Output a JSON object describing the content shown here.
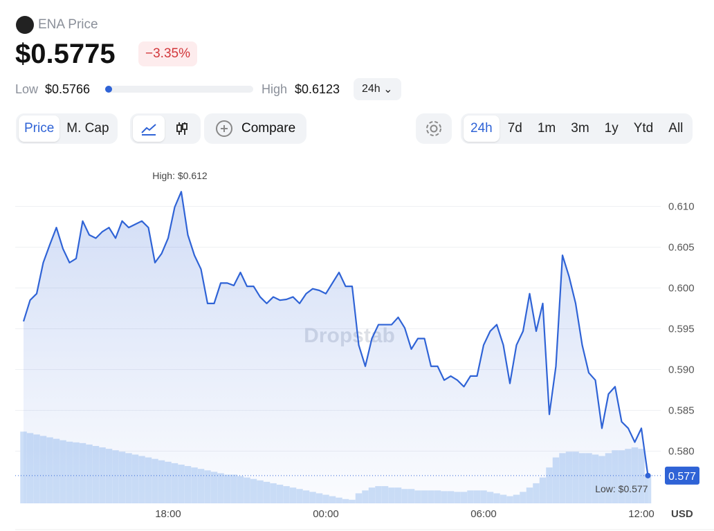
{
  "header": {
    "coin_name": "ENA Price",
    "price": "$0.5775",
    "change": "−3.35%",
    "low_label": "Low",
    "low_value": "$0.5766",
    "high_label": "High",
    "high_value": "$0.6123",
    "range_select": "24h"
  },
  "toolbar": {
    "metric_tabs": [
      "Price",
      "M. Cap"
    ],
    "compare": "Compare",
    "timeframes": [
      "24h",
      "7d",
      "1m",
      "3m",
      "1y",
      "Ytd",
      "All"
    ]
  },
  "chart_data": {
    "type": "line",
    "watermark": "Dropstab",
    "currency": "USD",
    "color": "#2f63d6",
    "volume_color": "#cddff7",
    "high_label": "High: $0.612",
    "low_label": "Low: $0.577",
    "last_price": 0.577,
    "x": [
      "12:30",
      "12:45",
      "13:00",
      "13:15",
      "13:30",
      "13:45",
      "14:00",
      "14:15",
      "14:30",
      "14:45",
      "15:00",
      "15:15",
      "15:30",
      "15:45",
      "16:00",
      "16:15",
      "16:30",
      "16:45",
      "17:00",
      "17:15",
      "17:30",
      "17:45",
      "18:00",
      "18:15",
      "18:30",
      "18:45",
      "19:00",
      "19:15",
      "19:30",
      "19:45",
      "20:00",
      "20:15",
      "20:30",
      "20:45",
      "21:00",
      "21:15",
      "21:30",
      "21:45",
      "22:00",
      "22:15",
      "22:30",
      "22:45",
      "23:00",
      "23:15",
      "23:30",
      "23:45",
      "00:00",
      "00:15",
      "00:30",
      "00:45",
      "01:00",
      "01:15",
      "01:30",
      "01:45",
      "02:00",
      "02:15",
      "02:30",
      "02:45",
      "03:00",
      "03:15",
      "03:30",
      "03:45",
      "04:00",
      "04:15",
      "04:30",
      "04:45",
      "05:00",
      "05:15",
      "05:30",
      "05:45",
      "06:00",
      "06:15",
      "06:30",
      "06:45",
      "07:00",
      "07:15",
      "07:30",
      "07:45",
      "08:00",
      "08:15",
      "08:30",
      "08:45",
      "09:00",
      "09:15",
      "09:30",
      "09:45",
      "10:00",
      "10:15",
      "10:30",
      "10:45",
      "11:00",
      "11:15",
      "11:30",
      "11:45",
      "12:00",
      "12:15"
    ],
    "values": [
      0.5959,
      0.5985,
      0.5993,
      0.6031,
      0.6053,
      0.6074,
      0.6048,
      0.6031,
      0.6036,
      0.6082,
      0.6065,
      0.6061,
      0.6069,
      0.6074,
      0.6061,
      0.6082,
      0.6074,
      0.6078,
      0.6082,
      0.6074,
      0.6031,
      0.6042,
      0.6061,
      0.6099,
      0.6118,
      0.6065,
      0.604,
      0.6023,
      0.5981,
      0.5981,
      0.6006,
      0.6006,
      0.6003,
      0.6019,
      0.6002,
      0.6002,
      0.5989,
      0.5981,
      0.5989,
      0.5985,
      0.5986,
      0.5989,
      0.5981,
      0.5993,
      0.5999,
      0.5997,
      0.5993,
      0.6006,
      0.6019,
      0.6002,
      0.6002,
      0.593,
      0.5904,
      0.5938,
      0.5955,
      0.5955,
      0.5955,
      0.5964,
      0.5951,
      0.5925,
      0.5938,
      0.5938,
      0.5904,
      0.5904,
      0.5887,
      0.5892,
      0.5887,
      0.5879,
      0.5892,
      0.5892,
      0.593,
      0.5947,
      0.5955,
      0.593,
      0.5883,
      0.593,
      0.5947,
      0.5993,
      0.5947,
      0.5981,
      0.5845,
      0.5904,
      0.604,
      0.6014,
      0.5981,
      0.593,
      0.5896,
      0.5887,
      0.5828,
      0.587,
      0.5879,
      0.5836,
      0.5828,
      0.5811,
      0.5828,
      0.577
    ],
    "volume": [
      100,
      98,
      96,
      94,
      92,
      90,
      88,
      86,
      85,
      84,
      82,
      80,
      78,
      76,
      74,
      72,
      70,
      68,
      66,
      64,
      62,
      60,
      58,
      56,
      54,
      52,
      50,
      48,
      46,
      44,
      42,
      40,
      40,
      38,
      36,
      34,
      32,
      30,
      28,
      26,
      24,
      22,
      20,
      18,
      16,
      14,
      12,
      10,
      8,
      6,
      5,
      14,
      18,
      22,
      24,
      24,
      22,
      22,
      20,
      20,
      18,
      18,
      18,
      18,
      17,
      17,
      16,
      16,
      18,
      18,
      18,
      16,
      14,
      12,
      10,
      12,
      16,
      22,
      28,
      36,
      50,
      64,
      70,
      72,
      72,
      70,
      70,
      68,
      66,
      70,
      74,
      74,
      76,
      78,
      76,
      40
    ],
    "vlim": [
      0,
      480
    ],
    "ylim": [
      0.5736,
      0.6158
    ],
    "yticks": [
      {
        "value": 0.58,
        "label": "0.580"
      },
      0.585,
      {
        "value": 0.59,
        "label": "0.590"
      },
      0.595,
      {
        "value": 0.6,
        "label": "0.600"
      },
      0.605,
      {
        "value": 0.61,
        "label": "0.610"
      }
    ],
    "xticks": [
      "18:00",
      "00:00",
      "06:00",
      "12:00"
    ],
    "grid": true
  }
}
